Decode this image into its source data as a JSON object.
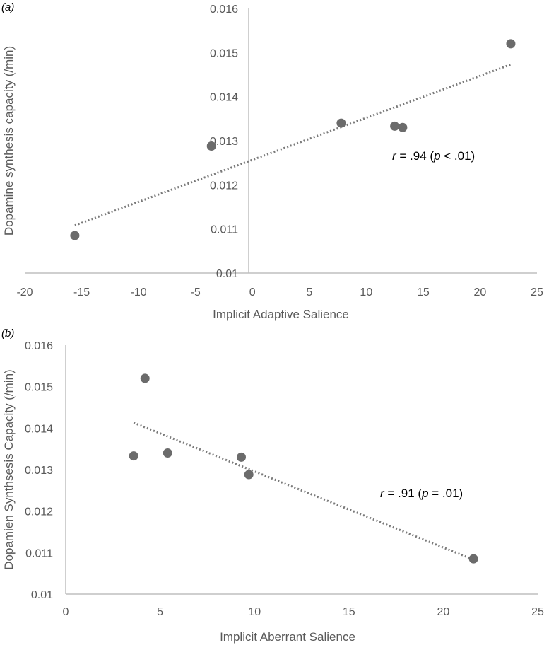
{
  "chart_data": [
    {
      "type": "scatter",
      "panel_label": "(a)",
      "xlabel": "Implicit Adaptive Salience",
      "ylabel": "Dopamine synthesis capacity (/min)",
      "xlim": [
        -20,
        25
      ],
      "ylim": [
        0.01,
        0.016
      ],
      "x_ticks": [
        "-20",
        "-15",
        "-10",
        "-5",
        "0",
        "5",
        "10",
        "15",
        "20",
        "25"
      ],
      "y_ticks": [
        "0.01",
        "0.011",
        "0.012",
        "0.013",
        "0.014",
        "0.015",
        "0.016"
      ],
      "points": [
        {
          "x": -15.6,
          "y": 0.01085
        },
        {
          "x": -3.6,
          "y": 0.01288
        },
        {
          "x": 7.8,
          "y": 0.0134
        },
        {
          "x": 12.5,
          "y": 0.01333
        },
        {
          "x": 13.2,
          "y": 0.0133
        },
        {
          "x": 22.7,
          "y": 0.0152
        }
      ],
      "trendline": {
        "x": [
          -15.6,
          22.7
        ],
        "y": [
          0.01108,
          0.01473
        ]
      },
      "annotation": {
        "r": "r",
        "mid1": " = .94 (",
        "p": "p",
        "mid2": " < .01)"
      },
      "grid": false,
      "colors": {
        "marker": "#6b6b6b",
        "trendline": "#7a7a7a",
        "axis": "#bfbfbf"
      }
    },
    {
      "type": "scatter",
      "panel_label": "(b)",
      "xlabel": "Implicit Aberrant Salience",
      "ylabel": "Dopamien Synthsesis Capacity (/min)",
      "xlim": [
        0,
        25
      ],
      "ylim": [
        0.01,
        0.016
      ],
      "x_ticks": [
        "0",
        "5",
        "10",
        "15",
        "20",
        "25"
      ],
      "y_ticks": [
        "0.01",
        "0.011",
        "0.012",
        "0.013",
        "0.014",
        "0.015",
        "0.016"
      ],
      "points": [
        {
          "x": 3.6,
          "y": 0.01333
        },
        {
          "x": 4.2,
          "y": 0.0152
        },
        {
          "x": 5.4,
          "y": 0.0134
        },
        {
          "x": 9.3,
          "y": 0.0133
        },
        {
          "x": 9.7,
          "y": 0.01288
        },
        {
          "x": 21.6,
          "y": 0.01085
        }
      ],
      "trendline": {
        "x": [
          3.6,
          21.6
        ],
        "y": [
          0.01413,
          0.01083
        ]
      },
      "annotation": {
        "r": "r",
        "mid1": " = .91 (",
        "p": "p",
        "mid2": " = .01)"
      },
      "grid": false,
      "colors": {
        "marker": "#6b6b6b",
        "trendline": "#7a7a7a",
        "axis": "#bfbfbf"
      }
    }
  ]
}
